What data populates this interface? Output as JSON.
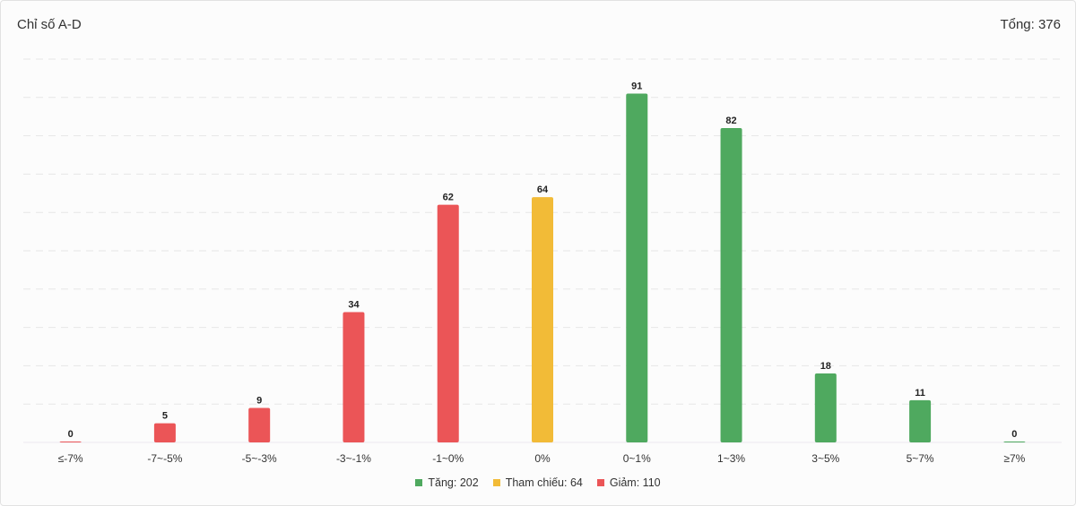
{
  "header": {
    "title": "Chỉ số A-D",
    "total_label": "Tổng: 376"
  },
  "legend": {
    "items": [
      {
        "label": "Tăng: 202",
        "color": "#4fa95f"
      },
      {
        "label": "Tham chiếu: 64",
        "color": "#f2bb37"
      },
      {
        "label": "Giảm: 110",
        "color": "#eb5557"
      }
    ]
  },
  "chart_data": {
    "type": "bar",
    "categories": [
      "≤-7%",
      "-7~-5%",
      "-5~-3%",
      "-3~-1%",
      "-1~0%",
      "0%",
      "0~1%",
      "1~3%",
      "3~5%",
      "5~7%",
      "≥7%"
    ],
    "values": [
      0,
      5,
      9,
      34,
      62,
      64,
      91,
      82,
      18,
      11,
      0
    ],
    "groups": [
      "Giảm",
      "Giảm",
      "Giảm",
      "Giảm",
      "Giảm",
      "Tham chiếu",
      "Tăng",
      "Tăng",
      "Tăng",
      "Tăng",
      "Tăng"
    ],
    "colors": {
      "Giảm": "#eb5557",
      "Tham chiếu": "#f2bb37",
      "Tăng": "#4fa95f"
    },
    "ylim": [
      0,
      100
    ],
    "grid": true,
    "data_labels": true,
    "legend_position": "bottom"
  }
}
